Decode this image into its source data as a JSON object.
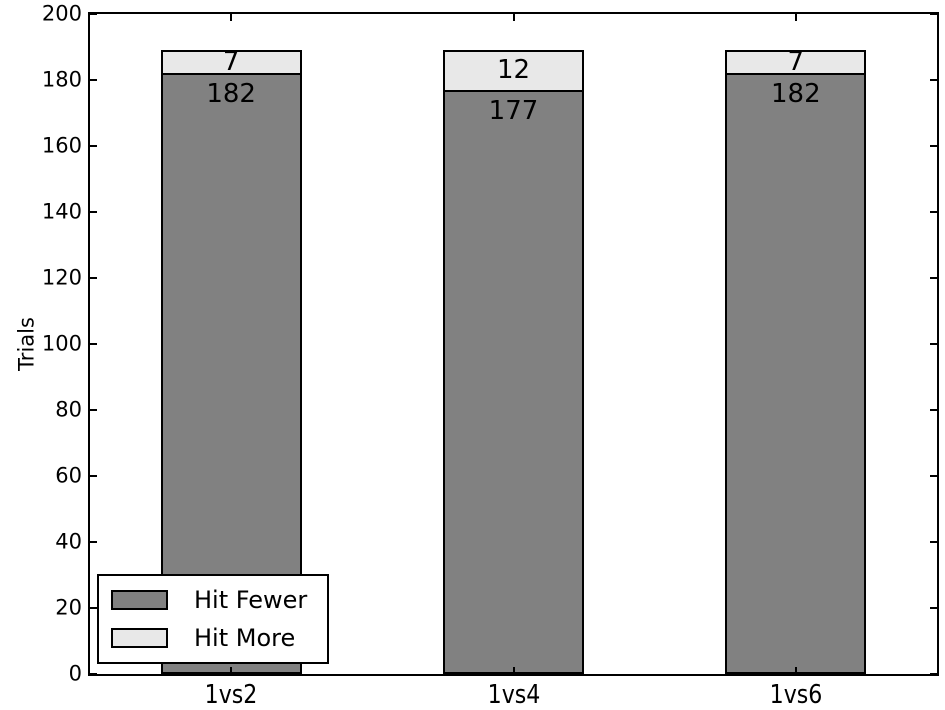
{
  "figure": {
    "background": "#ffffff",
    "axis_color": "#000000"
  },
  "chart_data": {
    "type": "bar",
    "stacked": true,
    "title": "",
    "categories": [
      "1vs2",
      "1vs4",
      "1vs6"
    ],
    "series": [
      {
        "name": "Hit Fewer",
        "color": "#818181",
        "values": [
          182,
          177,
          182
        ]
      },
      {
        "name": "Hit More",
        "color": "#e8e8e8",
        "values": [
          7,
          12,
          7
        ]
      }
    ],
    "xlabel": "",
    "ylabel": "Trials",
    "ylim": [
      0,
      200
    ],
    "yticks": [
      0,
      20,
      40,
      60,
      80,
      100,
      120,
      140,
      160,
      180,
      200
    ],
    "grid": false,
    "bar_value_labels_shown": true,
    "legend": {
      "position": "lower left",
      "entries": [
        "Hit Fewer",
        "Hit More"
      ]
    }
  }
}
